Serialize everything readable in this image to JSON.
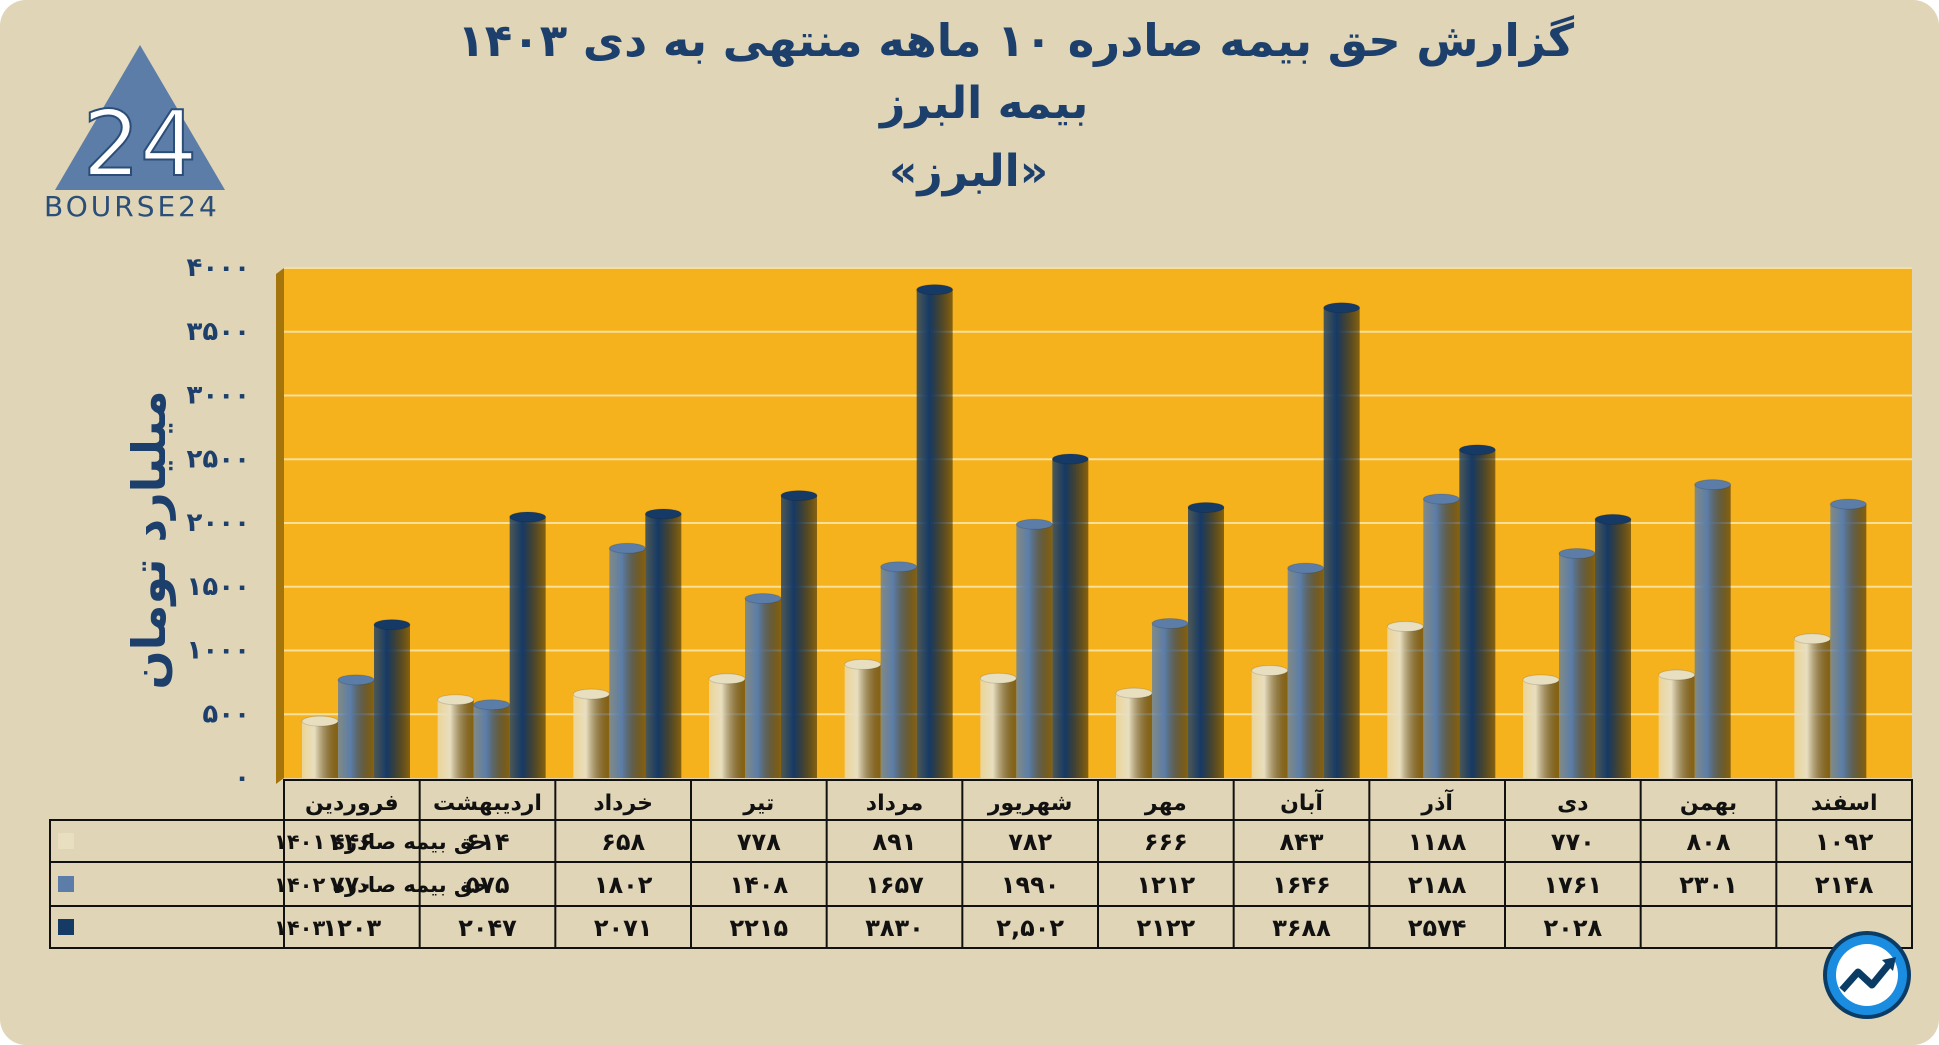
{
  "header": {
    "title_line1": "گزارش  حق بیمه صادره ۱۰ ماهه منتهی به دی ۱۴۰۳",
    "title_line2": "بیمه البرز",
    "title_line3": "«البرز»"
  },
  "logo": {
    "text": "BOURSE24",
    "mark": "24",
    "icon": "bourse24-triangle-logo"
  },
  "badge": {
    "icon": "trend-up-circle-icon"
  },
  "colors": {
    "background": "#e0d5b7",
    "plot_area": "#f5b21c",
    "series_1401": "#e8dfc0",
    "series_1402": "#5b7da8",
    "series_1403": "#163a66",
    "text": "#1d3f6b"
  },
  "chart_data": {
    "type": "bar",
    "title": "گزارش  حق بیمه صادره ۱۰ ماهه منتهی به دی ۱۴۰۳",
    "ylabel": "میلیارد تومان",
    "ylim": [
      0,
      4000
    ],
    "yticks": [
      "۰",
      "۵۰۰",
      "۱۰۰۰",
      "۱۵۰۰",
      "۲۰۰۰",
      "۲۵۰۰",
      "۳۰۰۰",
      "۳۵۰۰",
      "۴۰۰۰"
    ],
    "grid": true,
    "categories": [
      "فروردین",
      "اردیبهشت",
      "خرداد",
      "تیر",
      "مرداد",
      "شهریور",
      "مهر",
      "آبان",
      "آذر",
      "دی",
      "بهمن",
      "اسفند"
    ],
    "series": [
      {
        "name": "حق بیمه صادره ۱۴۰۱",
        "values": [
          446,
          614,
          658,
          778,
          891,
          782,
          666,
          843,
          1188,
          770,
          808,
          1092
        ],
        "labels": [
          "۴۴۶",
          "۶۱۴",
          "۶۵۸",
          "۷۷۸",
          "۸۹۱",
          "۷۸۲",
          "۶۶۶",
          "۸۴۳",
          "۱۱۸۸",
          "۷۷۰",
          "۸۰۸",
          "۱۰۹۲"
        ]
      },
      {
        "name": "حق بیمه صادره ۱۴۰۲",
        "values": [
          770,
          575,
          1802,
          1408,
          1657,
          1990,
          1212,
          1646,
          2188,
          1761,
          2301,
          2148
        ],
        "labels": [
          "۷۷۰",
          "۵۷۵",
          "۱۸۰۲",
          "۱۴۰۸",
          "۱۶۵۷",
          "۱۹۹۰",
          "۱۲۱۲",
          "۱۶۴۶",
          "۲۱۸۸",
          "۱۷۶۱",
          "۲۳۰۱",
          "۲۱۴۸"
        ]
      },
      {
        "name": "۱۴۰۳",
        "values": [
          1203,
          2047,
          2071,
          2215,
          3830,
          2502,
          2122,
          3688,
          2574,
          2028,
          null,
          null
        ],
        "labels": [
          "۱۲۰۳",
          "۲۰۴۷",
          "۲۰۷۱",
          "۲۲۱۵",
          "۳۸۳۰",
          "۲,۵۰۲",
          "۲۱۲۲",
          "۳۶۸۸",
          "۲۵۷۴",
          "۲۰۲۸",
          "",
          ""
        ]
      }
    ]
  }
}
